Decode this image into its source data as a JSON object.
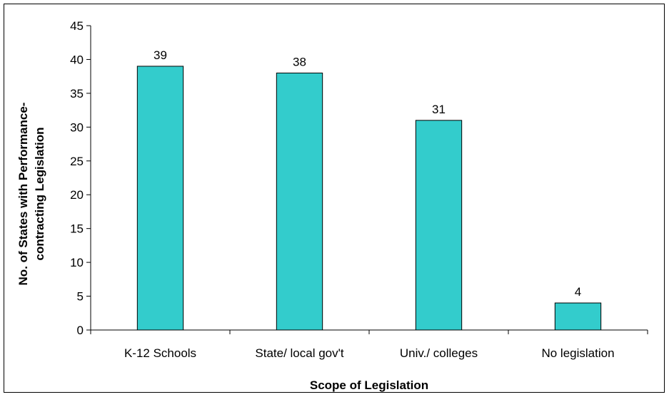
{
  "chart_data": {
    "type": "bar",
    "title": "",
    "xlabel": "Scope of Legislation",
    "ylabel_lines": [
      "No. of States with Performance-",
      "contracting Legislation"
    ],
    "categories": [
      "K-12 Schools",
      "State/ local gov't",
      "Univ./ colleges",
      "No legislation"
    ],
    "values": [
      39,
      38,
      31,
      4
    ],
    "data_labels": [
      "39",
      "38",
      "31",
      "4"
    ],
    "ylim": [
      0,
      45
    ],
    "yticks": [
      "0",
      "5",
      "10",
      "15",
      "20",
      "25",
      "30",
      "35",
      "40",
      "45"
    ],
    "grid": false,
    "bar_color": "#33CCCC",
    "bar_edge_color": "#000000"
  }
}
